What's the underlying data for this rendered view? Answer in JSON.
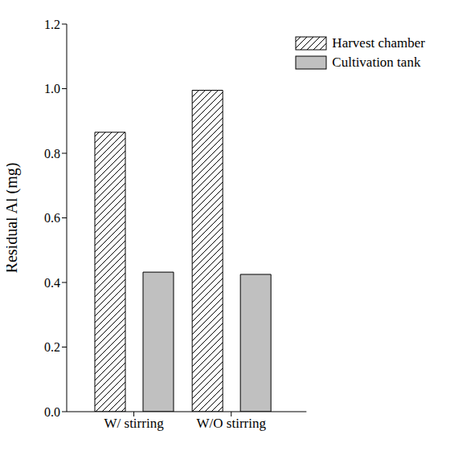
{
  "chart_data": {
    "type": "bar",
    "y_label": "Residual Al (mg)",
    "categories": [
      "W/ stirring",
      "W/O stirring"
    ],
    "series": [
      {
        "name": "Harvest chamber",
        "color": "#ffffff",
        "values": [
          0.865,
          0.995
        ]
      },
      {
        "name": "Cultivation tank",
        "color": "#c0c0c0",
        "values": [
          0.432,
          0.425
        ]
      }
    ],
    "ylim": [
      0,
      1.2
    ],
    "yticks": [
      {
        "value": 0,
        "label": "0.0"
      },
      0.2,
      0.4,
      0.6,
      0.8,
      {
        "value": 1,
        "label": "1.0"
      },
      1.2
    ],
    "legend": "upper right",
    "grid": false
  }
}
